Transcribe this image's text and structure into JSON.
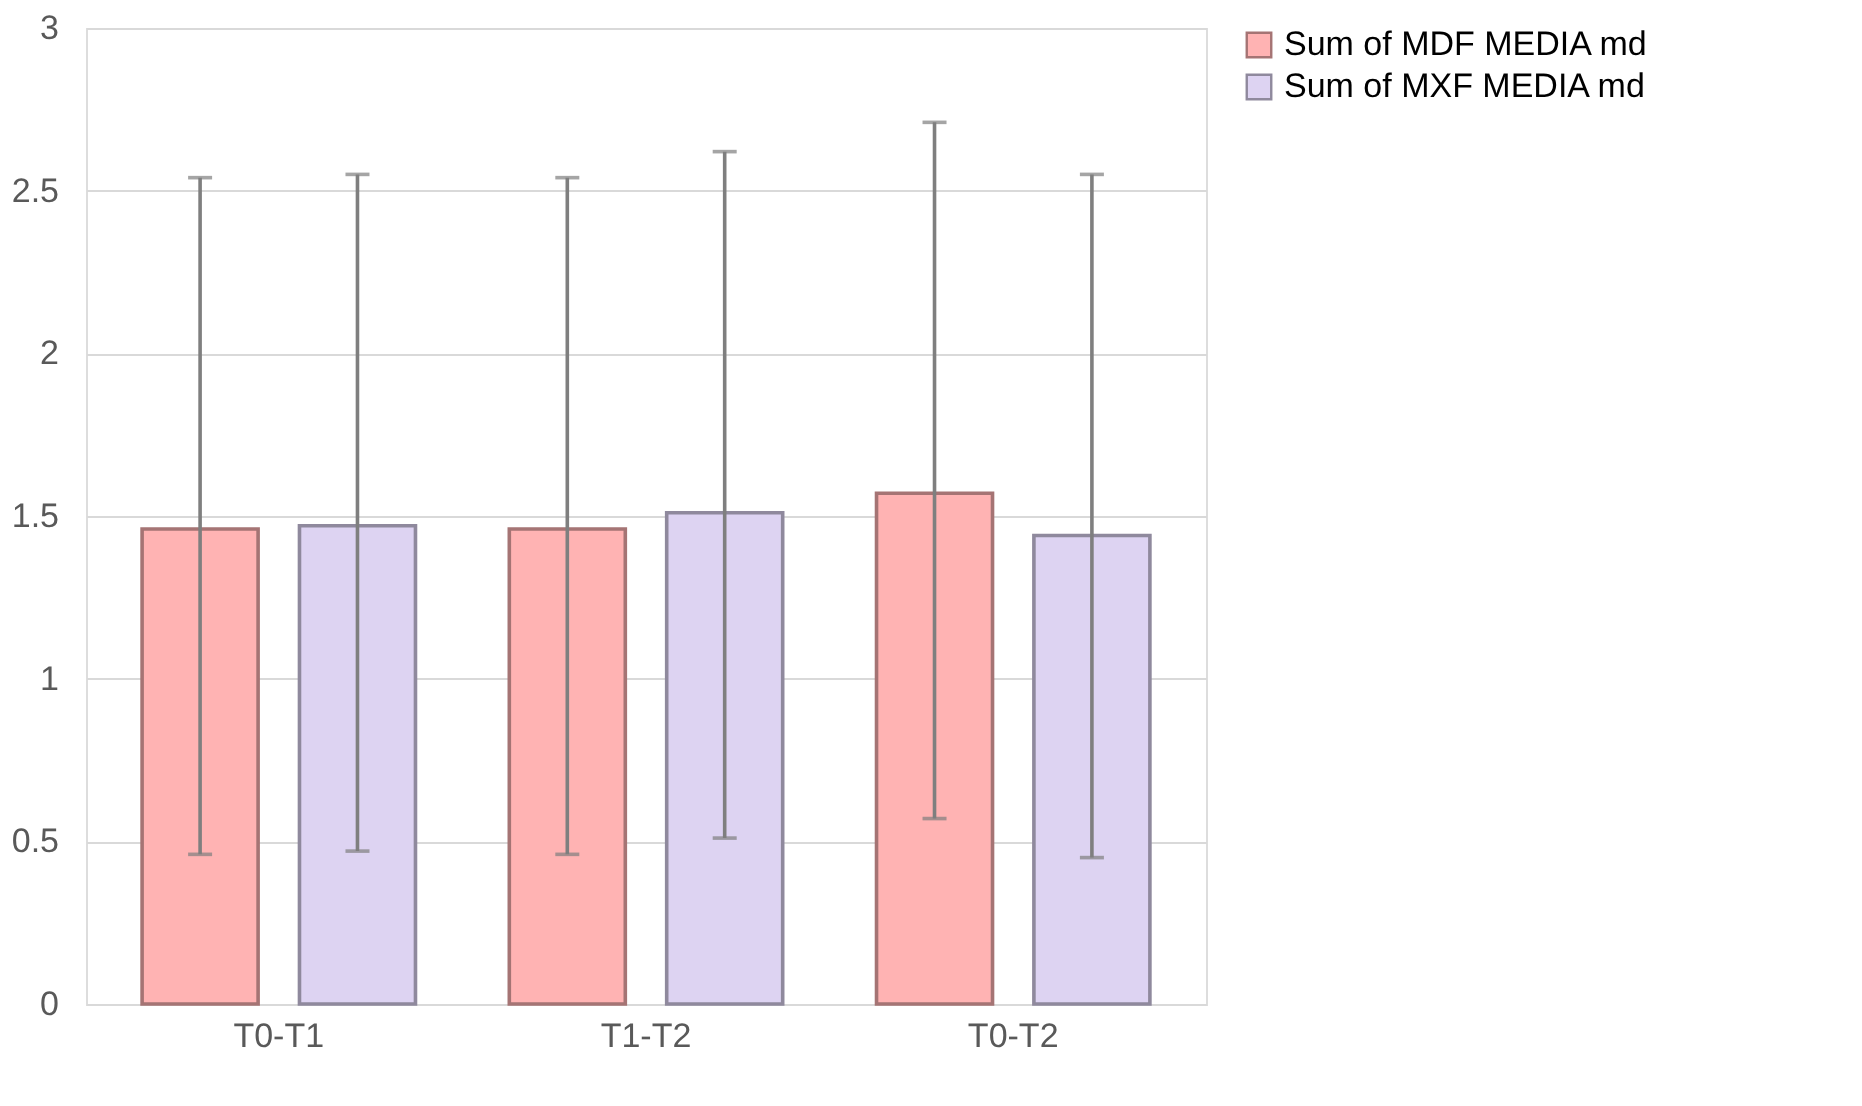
{
  "chart_data": {
    "type": "bar",
    "categories": [
      "T0-T1",
      "T1-T2",
      "T0-T2"
    ],
    "series": [
      {
        "name": "Sum of MDF MEDIA md",
        "color": "#ffb3b3",
        "values": [
          1.46,
          1.46,
          1.57
        ],
        "errors": [
          [
            0.46,
            2.54
          ],
          [
            0.46,
            2.54
          ],
          [
            0.57,
            2.71
          ]
        ]
      },
      {
        "name": "Sum of MXF MEDIA md",
        "color": "#ddd3f2",
        "values": [
          1.47,
          1.51,
          1.44
        ],
        "errors": [
          [
            0.47,
            2.55
          ],
          [
            0.51,
            2.62
          ],
          [
            0.45,
            2.55
          ]
        ]
      }
    ],
    "ylim": [
      0,
      3
    ],
    "yticks": [
      0,
      0.5,
      1,
      1.5,
      2,
      2.5,
      3
    ],
    "grid": "y",
    "legend": "right"
  }
}
